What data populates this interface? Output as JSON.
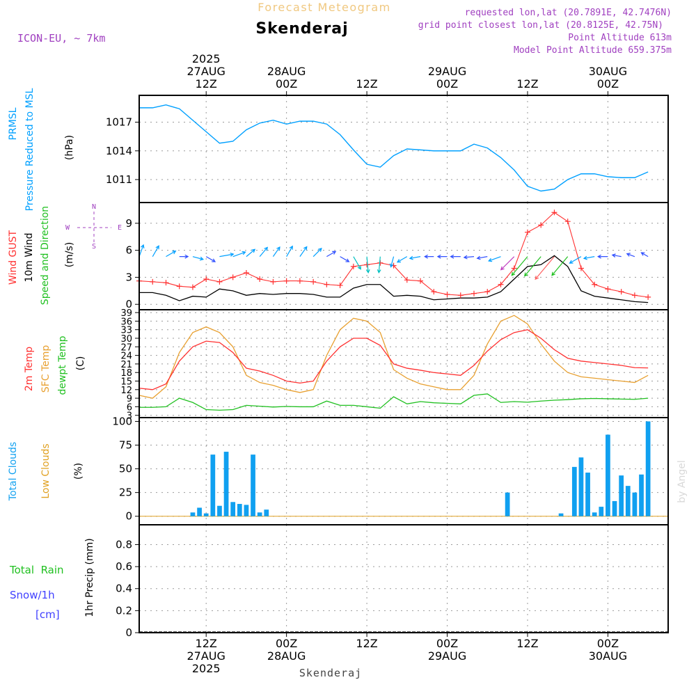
{
  "header": {
    "subtitle": "Forecast Meteogram",
    "title": "Skenderaj",
    "model": "ICON-EU, ~ 7km",
    "requested": "requested lon,lat (20.7891E, 42.7476N)",
    "grid": "grid point closest lon,lat (20.8125E, 42.75N)",
    "point_alt": "Point Altitude 613m",
    "model_alt": "Model Point Altitude 659.375m",
    "watermark": "by Angel",
    "footer_place": "Skenderaj",
    "compass": {
      "n": "N",
      "s": "S",
      "w": "W",
      "e": "E"
    }
  },
  "colors": {
    "pressure": "#00a0ff",
    "gust": "#ff3030",
    "wind": "#000000",
    "temp2m": "#ff3030",
    "sfc": "#e8a030",
    "dewpt": "#20c020",
    "clouds": "#10a0f0",
    "low_clouds": "#e0a020",
    "rain": "#20c020",
    "snow": "#4040ff",
    "meta": "#a040c0",
    "subtitle": "#f0c880"
  },
  "chart_data": {
    "time_axis": {
      "hours_total": 79,
      "top_ticks": [
        {
          "hour": 10,
          "lines": [
            "2025",
            "27AUG",
            "12Z"
          ]
        },
        {
          "hour": 22,
          "lines": [
            "28AUG",
            "00Z"
          ]
        },
        {
          "hour": 34,
          "lines": [
            "12Z"
          ]
        },
        {
          "hour": 46,
          "lines": [
            "29AUG",
            "00Z"
          ]
        },
        {
          "hour": 58,
          "lines": [
            "12Z"
          ]
        },
        {
          "hour": 70,
          "lines": [
            "30AUG",
            "00Z"
          ]
        }
      ],
      "bottom_ticks": [
        {
          "hour": 10,
          "lines": [
            "12Z",
            "27AUG",
            "2025"
          ]
        },
        {
          "hour": 22,
          "lines": [
            "00Z",
            "28AUG"
          ]
        },
        {
          "hour": 34,
          "lines": [
            "12Z"
          ]
        },
        {
          "hour": 46,
          "lines": [
            "00Z",
            "29AUG"
          ]
        },
        {
          "hour": 58,
          "lines": [
            "12Z"
          ]
        },
        {
          "hour": 70,
          "lines": [
            "00Z",
            "30AUG"
          ]
        }
      ]
    },
    "pressure": {
      "labels": [
        "PRMSL",
        "Pressure Reduced to MSL"
      ],
      "unit": "(hPa)",
      "ylim": [
        1008.6,
        1019.8
      ],
      "ticks": [
        1011,
        1014,
        1017
      ],
      "hours": [
        0,
        2,
        4,
        6,
        8,
        10,
        12,
        14,
        16,
        18,
        20,
        22,
        24,
        26,
        28,
        30,
        32,
        34,
        36,
        38,
        40,
        42,
        44,
        46,
        48,
        50,
        52,
        54,
        56,
        58,
        60,
        62,
        64,
        66,
        68,
        70,
        72,
        74,
        76
      ],
      "values": [
        1018.5,
        1018.5,
        1018.8,
        1018.4,
        1017.2,
        1016.0,
        1014.8,
        1015.0,
        1016.2,
        1016.9,
        1017.2,
        1016.8,
        1017.1,
        1017.1,
        1016.8,
        1015.7,
        1014.1,
        1012.6,
        1012.3,
        1013.5,
        1014.2,
        1014.1,
        1014.0,
        1014.0,
        1014.0,
        1014.7,
        1014.3,
        1013.3,
        1012.0,
        1010.3,
        1009.8,
        1010.0,
        1011.0,
        1011.6,
        1011.6,
        1011.3,
        1011.2,
        1011.2,
        1011.8
      ]
    },
    "wind": {
      "labels": {
        "gust": "Wind GUST",
        "wind": "10m Wind",
        "dir": "Speed and Direction"
      },
      "unit": "(m/s)",
      "ylim": [
        -0.6,
        11.3
      ],
      "ticks": [
        0,
        3,
        6,
        9
      ],
      "hours": [
        0,
        2,
        4,
        6,
        8,
        10,
        12,
        14,
        16,
        18,
        20,
        22,
        24,
        26,
        28,
        30,
        32,
        34,
        36,
        38,
        40,
        42,
        44,
        46,
        48,
        50,
        52,
        54,
        56,
        58,
        60,
        62,
        64,
        66,
        68,
        70,
        72,
        74,
        76
      ],
      "gust": [
        2.6,
        2.5,
        2.4,
        2.0,
        1.9,
        2.8,
        2.5,
        3.0,
        3.5,
        2.8,
        2.5,
        2.6,
        2.6,
        2.5,
        2.2,
        2.1,
        4.2,
        4.4,
        4.6,
        4.3,
        2.7,
        2.6,
        1.4,
        1.1,
        1.0,
        1.2,
        1.4,
        2.2,
        4.0,
        8.0,
        8.8,
        10.2,
        9.2,
        4.0,
        2.2,
        1.7,
        1.4,
        1.0,
        0.8
      ],
      "speed": [
        1.3,
        1.3,
        1.0,
        0.4,
        0.9,
        0.8,
        1.7,
        1.5,
        1.0,
        1.2,
        1.1,
        1.2,
        1.2,
        1.1,
        0.8,
        0.8,
        1.8,
        2.2,
        2.2,
        0.9,
        1.0,
        0.9,
        0.5,
        0.6,
        0.7,
        0.7,
        0.8,
        1.4,
        2.8,
        4.2,
        4.4,
        5.4,
        4.2,
        1.5,
        0.9,
        0.7,
        0.5,
        0.3,
        0.2
      ],
      "arrow_hours": [
        0,
        2,
        4,
        6,
        8,
        10,
        12,
        14,
        16,
        18,
        20,
        22,
        24,
        26,
        28,
        30,
        32,
        34,
        36,
        38,
        40,
        42,
        44,
        46,
        48,
        50,
        52,
        54,
        56,
        58,
        60,
        62,
        64,
        66,
        68,
        70,
        72,
        74,
        76
      ],
      "arrow_dir_deg": [
        200,
        210,
        240,
        270,
        285,
        300,
        260,
        250,
        230,
        220,
        215,
        210,
        215,
        225,
        240,
        300,
        330,
        355,
        5,
        15,
        60,
        80,
        90,
        90,
        90,
        85,
        80,
        70,
        45,
        40,
        40,
        40,
        40,
        60,
        80,
        90,
        100,
        110,
        120
      ]
    },
    "temperature": {
      "labels": {
        "t2m": "2m Temp",
        "sfc": "SFC Temp",
        "dew": "dewpt Temp"
      },
      "unit": "(C)",
      "ylim": [
        2.2,
        40.0
      ],
      "ticks": [
        3,
        6,
        9,
        12,
        15,
        18,
        21,
        24,
        27,
        30,
        33,
        36,
        39
      ],
      "hours": [
        0,
        2,
        4,
        6,
        8,
        10,
        12,
        14,
        16,
        18,
        20,
        22,
        24,
        26,
        28,
        30,
        32,
        34,
        36,
        38,
        40,
        42,
        44,
        46,
        48,
        50,
        52,
        54,
        56,
        58,
        60,
        62,
        64,
        66,
        68,
        70,
        72,
        74,
        76
      ],
      "t2m": [
        12.5,
        12.0,
        14.0,
        22.0,
        27.0,
        29.0,
        28.5,
        25.0,
        19.5,
        18.5,
        17.0,
        15.0,
        14.3,
        15.0,
        22.0,
        27.0,
        30.0,
        30.0,
        27.5,
        21.0,
        19.5,
        18.8,
        18.0,
        17.5,
        17.0,
        20.5,
        25.5,
        29.5,
        32.0,
        33.0,
        30.0,
        26.0,
        23.0,
        22.0,
        21.5,
        21.0,
        20.5,
        19.7,
        19.6
      ],
      "sfc": [
        10.0,
        9.0,
        13.0,
        25.0,
        32.0,
        34.0,
        32.0,
        27.0,
        17.0,
        14.5,
        13.5,
        12.0,
        11.0,
        12.0,
        24.0,
        33.0,
        37.0,
        36.0,
        32.0,
        19.0,
        16.0,
        14.0,
        13.0,
        12.0,
        12.0,
        17.0,
        28.0,
        36.0,
        38.0,
        35.0,
        28.0,
        22.0,
        18.0,
        16.5,
        16.0,
        15.5,
        15.0,
        14.5,
        17.0
      ],
      "dew": [
        5.8,
        5.8,
        6.0,
        9.0,
        7.5,
        5.0,
        4.8,
        5.0,
        6.5,
        6.2,
        5.9,
        6.1,
        6.0,
        6.0,
        8.0,
        6.5,
        6.5,
        6.0,
        5.5,
        9.5,
        7.0,
        7.8,
        7.4,
        7.2,
        7.0,
        10.0,
        10.5,
        7.5,
        7.8,
        7.6,
        8.0,
        8.3,
        8.5,
        8.8,
        8.9,
        8.8,
        8.7,
        8.6,
        9.0
      ]
    },
    "clouds": {
      "labels": {
        "total": "Total Clouds",
        "low": "Low Clouds"
      },
      "unit": "(%)",
      "ylim": [
        -9,
        104
      ],
      "ticks": [
        0,
        25,
        50,
        75,
        100
      ],
      "total": [
        [
          8,
          4
        ],
        [
          9,
          9
        ],
        [
          10,
          3
        ],
        [
          11,
          65
        ],
        [
          12,
          11
        ],
        [
          13,
          68
        ],
        [
          14,
          15
        ],
        [
          15,
          13
        ],
        [
          16,
          12
        ],
        [
          17,
          65
        ],
        [
          18,
          4
        ],
        [
          19,
          7
        ],
        [
          55,
          25
        ],
        [
          63,
          3
        ],
        [
          65,
          52
        ],
        [
          66,
          62
        ],
        [
          67,
          46
        ],
        [
          68,
          4
        ],
        [
          69,
          10
        ],
        [
          70,
          86
        ],
        [
          71,
          16
        ],
        [
          72,
          43
        ],
        [
          73,
          32
        ],
        [
          74,
          25
        ],
        [
          75,
          44
        ],
        [
          76,
          100
        ]
      ],
      "low_baseline": 0
    },
    "precip": {
      "labels": {
        "rain": "Total  Rain",
        "snow": "Snow/1h",
        "snow_unit": "[cm]"
      },
      "unit": "1hr Precip (mm)",
      "ylim": [
        0,
        0.98
      ],
      "ticks": [
        0,
        0.2,
        0.4,
        0.6,
        0.8
      ],
      "tick_labels": [
        "0",
        "0.2",
        "0.4",
        "0.6",
        "0.8"
      ],
      "rain": [],
      "snow": []
    }
  }
}
